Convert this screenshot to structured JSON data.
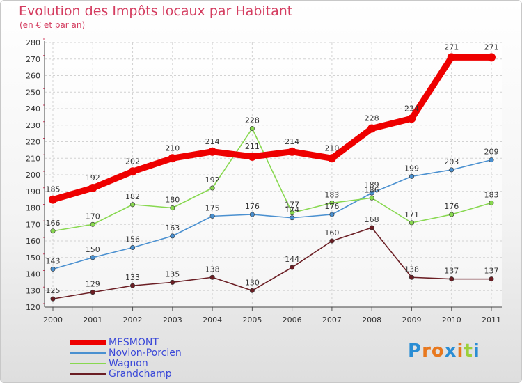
{
  "title": "Evolution des Impôts locaux par Habitant",
  "subtitle": "(en € et par an)",
  "logo": {
    "text": "Proxiti",
    "letter_colors": [
      "#2a8dd4",
      "#e8781e",
      "#e8781e",
      "#2a8dd4",
      "#e8781e",
      "#9ccf3a",
      "#2a8dd4"
    ]
  },
  "chart_data": {
    "type": "line",
    "title": "Evolution des Impôts locaux par Habitant",
    "subtitle": "(en € et par an)",
    "x": [
      "2000",
      "2001",
      "2002",
      "2003",
      "2004",
      "2005",
      "2006",
      "2007",
      "2008",
      "2009",
      "2010",
      "2011"
    ],
    "ylim": [
      120,
      280
    ],
    "yticks": [
      120,
      130,
      140,
      150,
      160,
      170,
      180,
      190,
      200,
      210,
      220,
      230,
      240,
      250,
      260,
      270,
      280
    ],
    "grid": true,
    "legend_position": "bottom-left",
    "series": [
      {
        "name": "MESMONT",
        "color": "#ee0000",
        "highlight": true,
        "values": [
          185,
          192,
          202,
          210,
          214,
          211,
          214,
          210,
          228,
          234,
          271,
          271
        ]
      },
      {
        "name": "Novion-Porcien",
        "color": "#4a90d0",
        "values": [
          143,
          150,
          156,
          163,
          175,
          176,
          174,
          176,
          189,
          199,
          203,
          209
        ]
      },
      {
        "name": "Wagnon",
        "color": "#88d850",
        "values": [
          166,
          170,
          182,
          180,
          192,
          228,
          177,
          183,
          186,
          171,
          176,
          183
        ]
      },
      {
        "name": "Grandchamp",
        "color": "#6b1e24",
        "values": [
          125,
          129,
          133,
          135,
          138,
          130,
          144,
          160,
          168,
          138,
          137,
          137
        ]
      }
    ]
  }
}
